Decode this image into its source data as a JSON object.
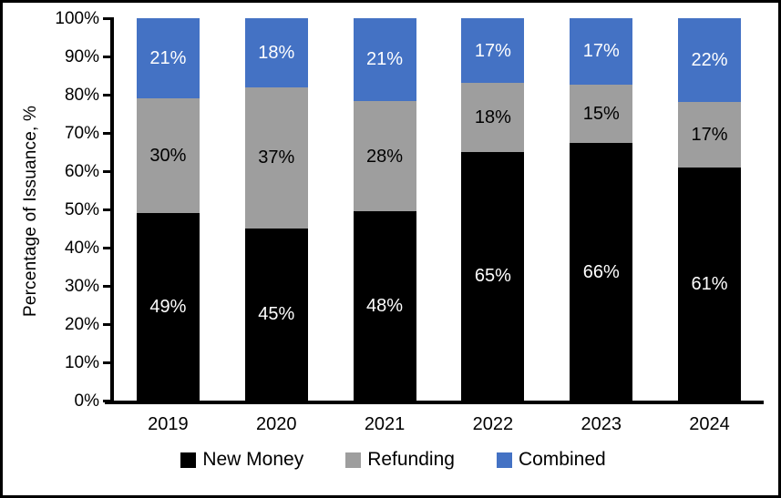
{
  "chart_data": {
    "type": "bar",
    "stacked": true,
    "title": "",
    "ylabel": "Percentage of Issuance, %",
    "xlabel": "",
    "ylim": [
      0,
      100
    ],
    "grid": false,
    "legend_position": "bottom",
    "y_ticks": [
      "0%",
      "10%",
      "20%",
      "30%",
      "40%",
      "50%",
      "60%",
      "70%",
      "80%",
      "90%",
      "100%"
    ],
    "categories": [
      "2019",
      "2020",
      "2021",
      "2022",
      "2023",
      "2024"
    ],
    "series": [
      {
        "name": "New Money",
        "color": "#000000",
        "label_color": "#ffffff",
        "values": [
          49,
          45,
          48,
          65,
          66,
          61
        ],
        "labels": [
          "49%",
          "45%",
          "48%",
          "65%",
          "66%",
          "61%"
        ]
      },
      {
        "name": "Refunding",
        "color": "#9E9E9E",
        "label_color": "#000000",
        "values": [
          30,
          37,
          28,
          18,
          15,
          17
        ],
        "labels": [
          "30%",
          "37%",
          "28%",
          "18%",
          "15%",
          "17%"
        ]
      },
      {
        "name": "Combined",
        "color": "#4472C4",
        "label_color": "#ffffff",
        "values": [
          21,
          18,
          21,
          17,
          17,
          22
        ],
        "labels": [
          "21%",
          "18%",
          "21%",
          "17%",
          "17%",
          "22%"
        ]
      }
    ]
  }
}
